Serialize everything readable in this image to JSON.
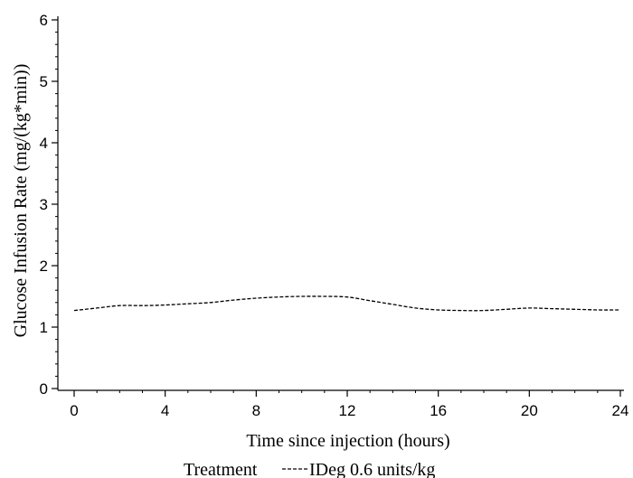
{
  "chart_data": {
    "type": "line",
    "title": "",
    "xlabel": "Time since injection (hours)",
    "ylabel": "Glucose Infusion Rate (mg/(kg*min))",
    "xlim": [
      0,
      24
    ],
    "ylim": [
      0,
      6
    ],
    "x_ticks": [
      0,
      4,
      8,
      12,
      16,
      20,
      24
    ],
    "y_ticks": [
      0,
      1,
      2,
      3,
      4,
      5,
      6
    ],
    "grid": false,
    "legend": {
      "placement": "bottom",
      "title": "Treatment",
      "entries": [
        "IDeg 0.6 units/kg"
      ]
    },
    "series": [
      {
        "name": "IDeg 0.6 units/kg",
        "line_style": "dashed",
        "color": "#000000",
        "x": [
          0,
          1,
          2,
          3,
          4,
          5,
          6,
          7,
          8,
          9,
          10,
          11,
          12,
          13,
          14,
          15,
          16,
          17,
          18,
          19,
          20,
          21,
          22,
          23,
          24
        ],
        "y": [
          1.27,
          1.31,
          1.35,
          1.35,
          1.36,
          1.38,
          1.4,
          1.44,
          1.47,
          1.49,
          1.5,
          1.5,
          1.49,
          1.43,
          1.37,
          1.31,
          1.28,
          1.27,
          1.27,
          1.29,
          1.31,
          1.3,
          1.29,
          1.28,
          1.28
        ]
      }
    ]
  }
}
